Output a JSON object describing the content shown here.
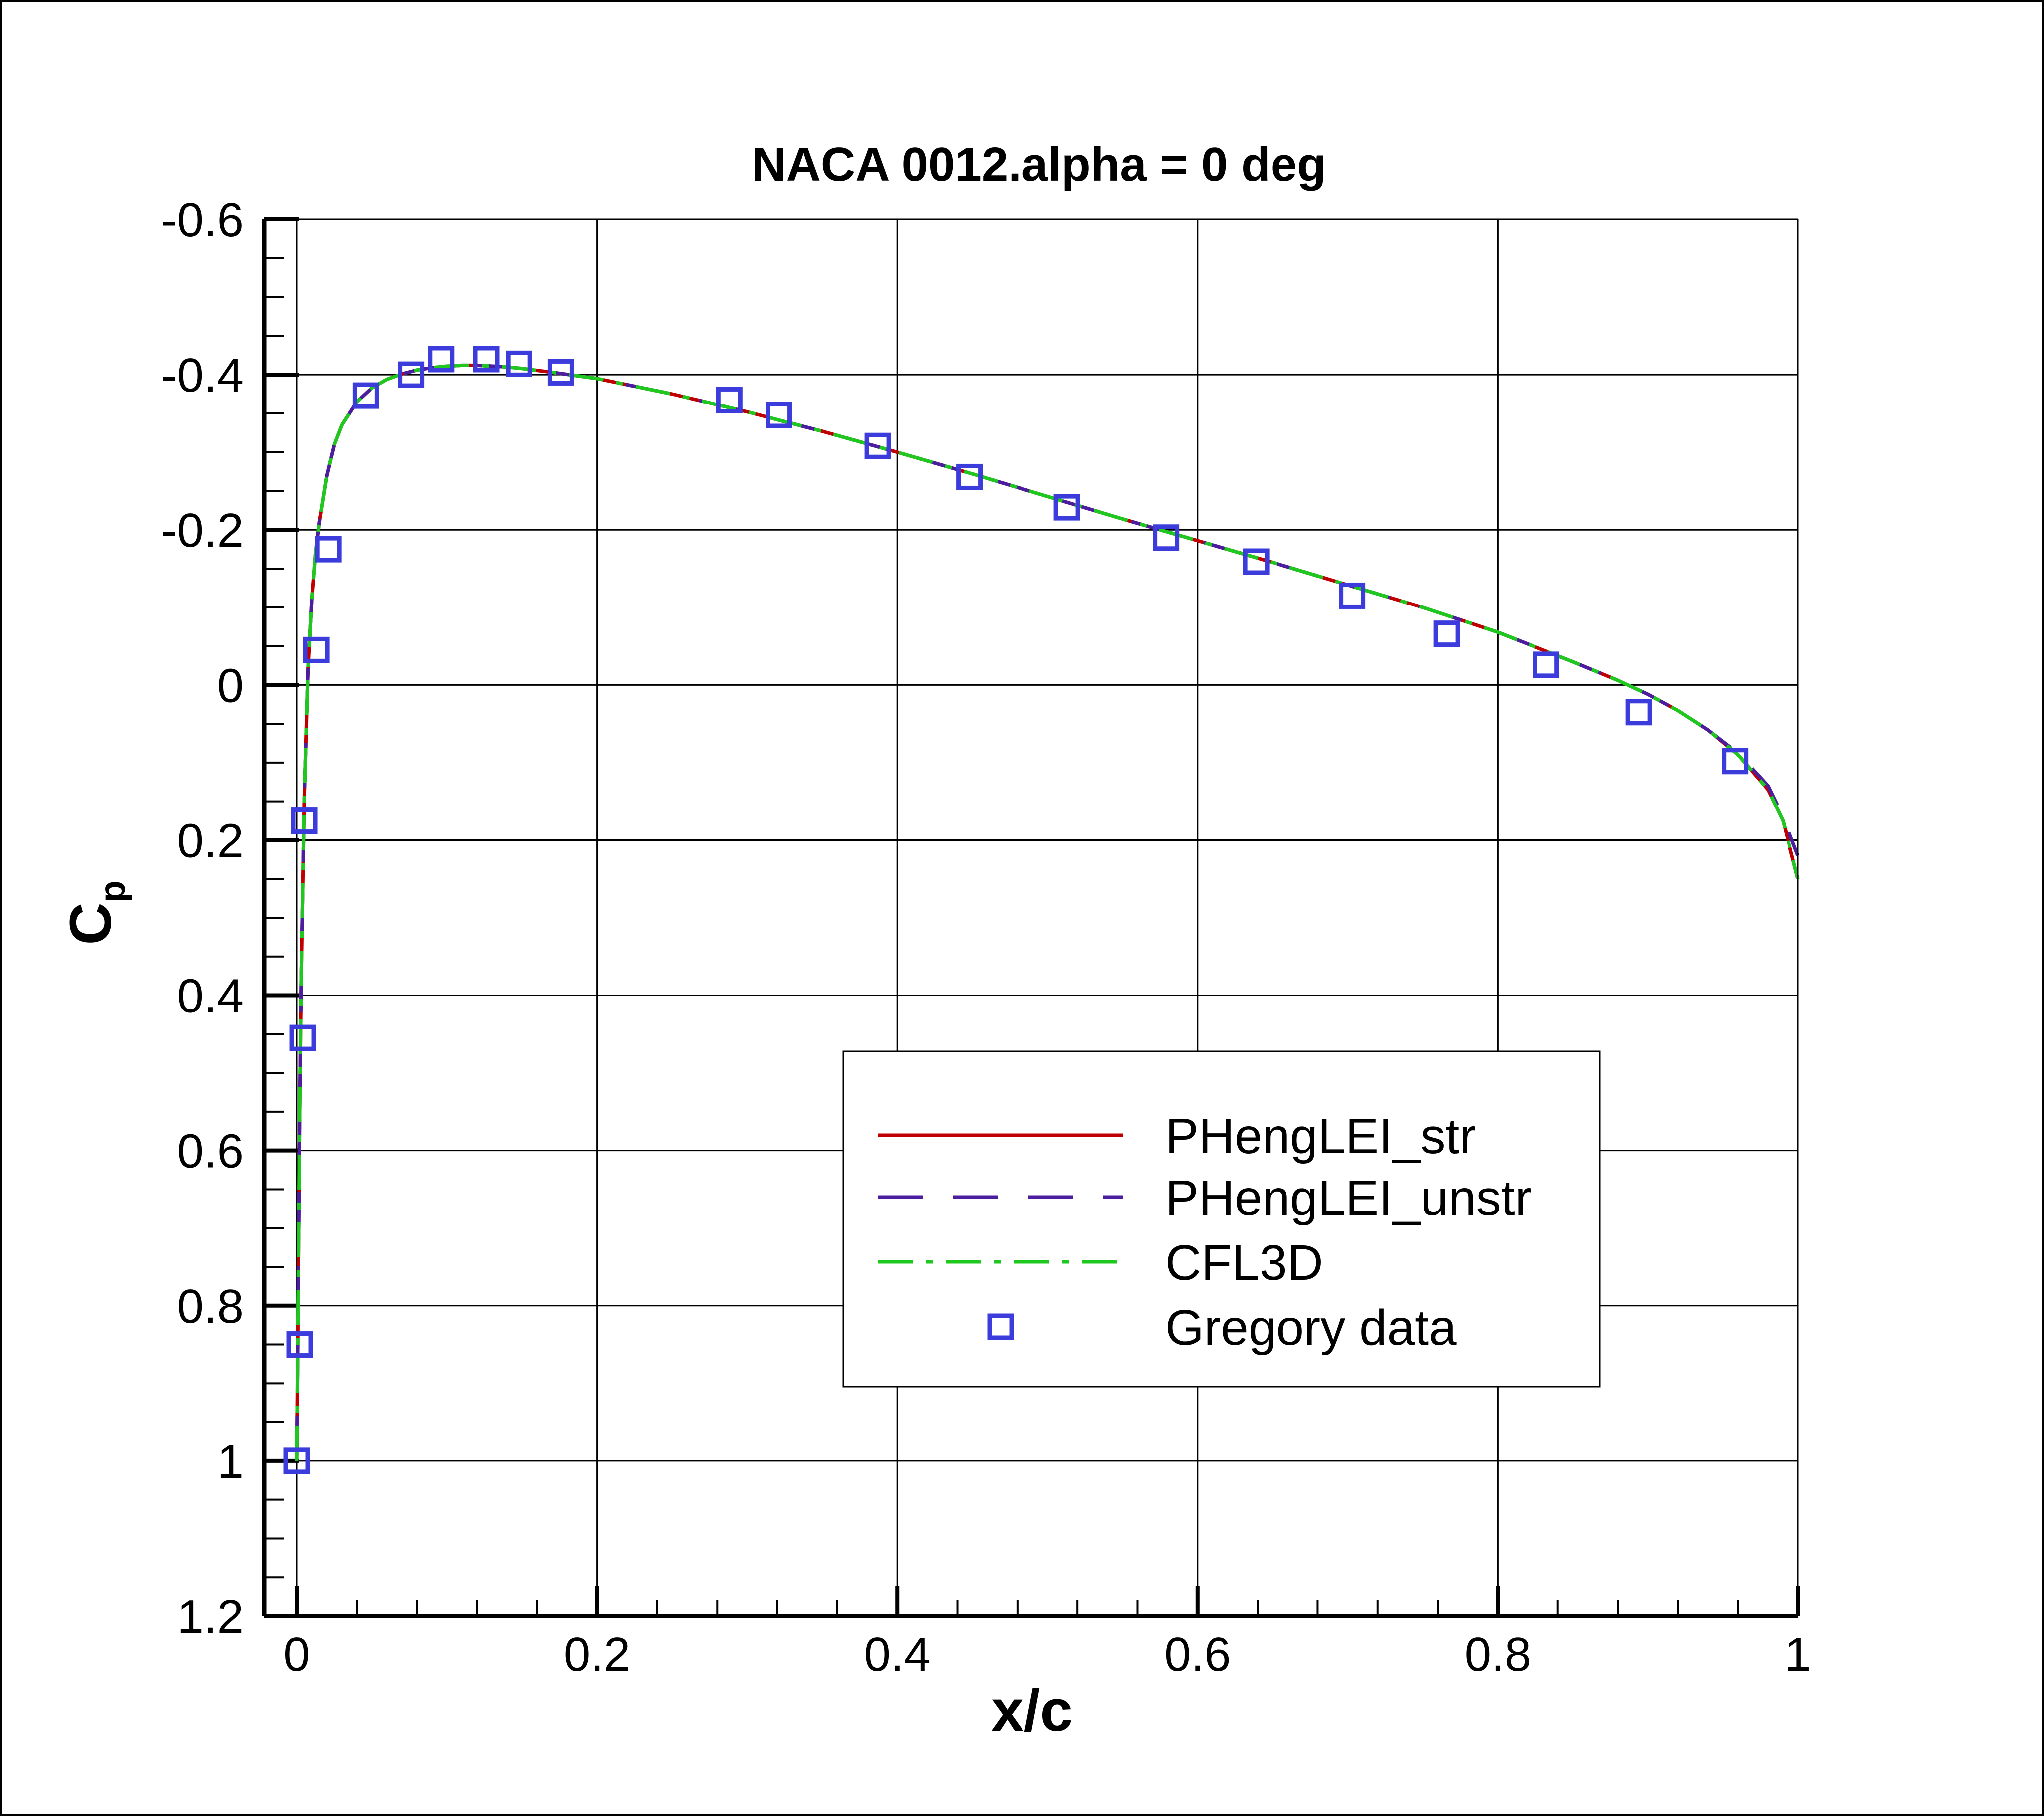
{
  "chart_data": {
    "type": "line",
    "title": "NACA 0012.alpha = 0 deg",
    "xlabel": "x/c",
    "ylabel": "C",
    "ylabel_sub": "p",
    "xlim": [
      0,
      1
    ],
    "ylim": [
      -0.6,
      1.2
    ],
    "y_inverted": true,
    "grid": true,
    "x_ticks": [
      0,
      0.2,
      0.4,
      0.6,
      0.8,
      1
    ],
    "x_tick_labels": [
      "0",
      "0.2",
      "0.4",
      "0.6",
      "0.8",
      "1"
    ],
    "y_ticks": [
      -0.6,
      -0.4,
      -0.2,
      0,
      0.2,
      0.4,
      0.6,
      0.8,
      1,
      1.2
    ],
    "y_tick_labels": [
      "-0.6",
      "-0.4",
      "-0.2",
      "0",
      "0.2",
      "0.4",
      "0.6",
      "0.8",
      "1",
      "1.2"
    ],
    "legend_position": "lower-right",
    "series": [
      {
        "name": "PHengLEI_str",
        "style": "solid",
        "color": "#c00000",
        "x": [
          0,
          0.0005,
          0.001,
          0.002,
          0.003,
          0.005,
          0.0075,
          0.01,
          0.0125,
          0.015,
          0.02,
          0.025,
          0.03,
          0.04,
          0.05,
          0.06,
          0.07,
          0.08,
          0.09,
          0.1,
          0.11,
          0.12,
          0.13,
          0.14,
          0.15,
          0.17,
          0.2,
          0.25,
          0.3,
          0.35,
          0.4,
          0.45,
          0.5,
          0.55,
          0.6,
          0.65,
          0.7,
          0.75,
          0.8,
          0.85,
          0.88,
          0.9,
          0.92,
          0.94,
          0.96,
          0.98,
          0.99,
          1.0
        ],
        "y": [
          1.0,
          0.9,
          0.78,
          0.55,
          0.38,
          0.15,
          -0.02,
          -0.11,
          -0.17,
          -0.21,
          -0.27,
          -0.31,
          -0.335,
          -0.365,
          -0.383,
          -0.394,
          -0.401,
          -0.406,
          -0.409,
          -0.411,
          -0.412,
          -0.412,
          -0.411,
          -0.41,
          -0.408,
          -0.403,
          -0.395,
          -0.375,
          -0.352,
          -0.327,
          -0.3,
          -0.272,
          -0.243,
          -0.214,
          -0.186,
          -0.158,
          -0.129,
          -0.1,
          -0.068,
          -0.03,
          -0.006,
          0.012,
          0.033,
          0.058,
          0.09,
          0.135,
          0.175,
          0.25
        ]
      },
      {
        "name": "PHengLEI_unstr",
        "style": "dashed",
        "color": "#4b1ea0",
        "x": [
          0,
          0.0005,
          0.001,
          0.002,
          0.003,
          0.005,
          0.0075,
          0.01,
          0.0125,
          0.015,
          0.02,
          0.025,
          0.03,
          0.04,
          0.05,
          0.06,
          0.07,
          0.08,
          0.09,
          0.1,
          0.11,
          0.12,
          0.13,
          0.14,
          0.15,
          0.17,
          0.2,
          0.25,
          0.3,
          0.35,
          0.4,
          0.45,
          0.5,
          0.55,
          0.6,
          0.65,
          0.7,
          0.75,
          0.8,
          0.85,
          0.88,
          0.9,
          0.92,
          0.94,
          0.96,
          0.98,
          0.99,
          1.0
        ],
        "y": [
          1.0,
          0.9,
          0.78,
          0.55,
          0.38,
          0.15,
          -0.02,
          -0.11,
          -0.17,
          -0.21,
          -0.27,
          -0.31,
          -0.335,
          -0.365,
          -0.383,
          -0.394,
          -0.401,
          -0.406,
          -0.409,
          -0.411,
          -0.412,
          -0.412,
          -0.411,
          -0.41,
          -0.408,
          -0.403,
          -0.395,
          -0.375,
          -0.352,
          -0.327,
          -0.3,
          -0.272,
          -0.243,
          -0.214,
          -0.186,
          -0.158,
          -0.129,
          -0.1,
          -0.068,
          -0.03,
          -0.006,
          0.012,
          0.033,
          0.058,
          0.088,
          0.13,
          0.17,
          0.22
        ]
      },
      {
        "name": "CFL3D",
        "style": "dashdot",
        "color": "#1ec81e",
        "x": [
          0,
          0.0005,
          0.001,
          0.002,
          0.003,
          0.005,
          0.0075,
          0.01,
          0.0125,
          0.015,
          0.02,
          0.025,
          0.03,
          0.04,
          0.05,
          0.06,
          0.07,
          0.08,
          0.09,
          0.1,
          0.11,
          0.12,
          0.13,
          0.14,
          0.15,
          0.17,
          0.2,
          0.25,
          0.3,
          0.35,
          0.4,
          0.45,
          0.5,
          0.55,
          0.6,
          0.65,
          0.7,
          0.75,
          0.8,
          0.85,
          0.88,
          0.9,
          0.92,
          0.94,
          0.96,
          0.98,
          0.99,
          1.0
        ],
        "y": [
          1.0,
          0.9,
          0.78,
          0.55,
          0.38,
          0.15,
          -0.02,
          -0.11,
          -0.17,
          -0.21,
          -0.27,
          -0.31,
          -0.335,
          -0.365,
          -0.383,
          -0.394,
          -0.401,
          -0.406,
          -0.409,
          -0.411,
          -0.412,
          -0.412,
          -0.411,
          -0.41,
          -0.408,
          -0.403,
          -0.395,
          -0.375,
          -0.352,
          -0.327,
          -0.3,
          -0.272,
          -0.243,
          -0.214,
          -0.186,
          -0.158,
          -0.129,
          -0.1,
          -0.068,
          -0.03,
          -0.006,
          0.012,
          0.033,
          0.058,
          0.09,
          0.135,
          0.175,
          0.25
        ]
      },
      {
        "name": "Gregory data",
        "style": "markers",
        "marker": "square",
        "color": "#3c3cdc",
        "x": [
          0.0,
          0.002,
          0.004,
          0.005,
          0.013,
          0.021,
          0.046,
          0.076,
          0.096,
          0.126,
          0.148,
          0.176,
          0.288,
          0.321,
          0.387,
          0.448,
          0.513,
          0.579,
          0.639,
          0.703,
          0.766,
          0.832,
          0.894,
          0.958
        ],
        "y": [
          1.0,
          0.85,
          0.455,
          0.175,
          -0.045,
          -0.175,
          -0.373,
          -0.4,
          -0.42,
          -0.42,
          -0.414,
          -0.403,
          -0.367,
          -0.348,
          -0.308,
          -0.268,
          -0.229,
          -0.19,
          -0.159,
          -0.115,
          -0.066,
          -0.026,
          0.035,
          0.098
        ]
      }
    ]
  }
}
